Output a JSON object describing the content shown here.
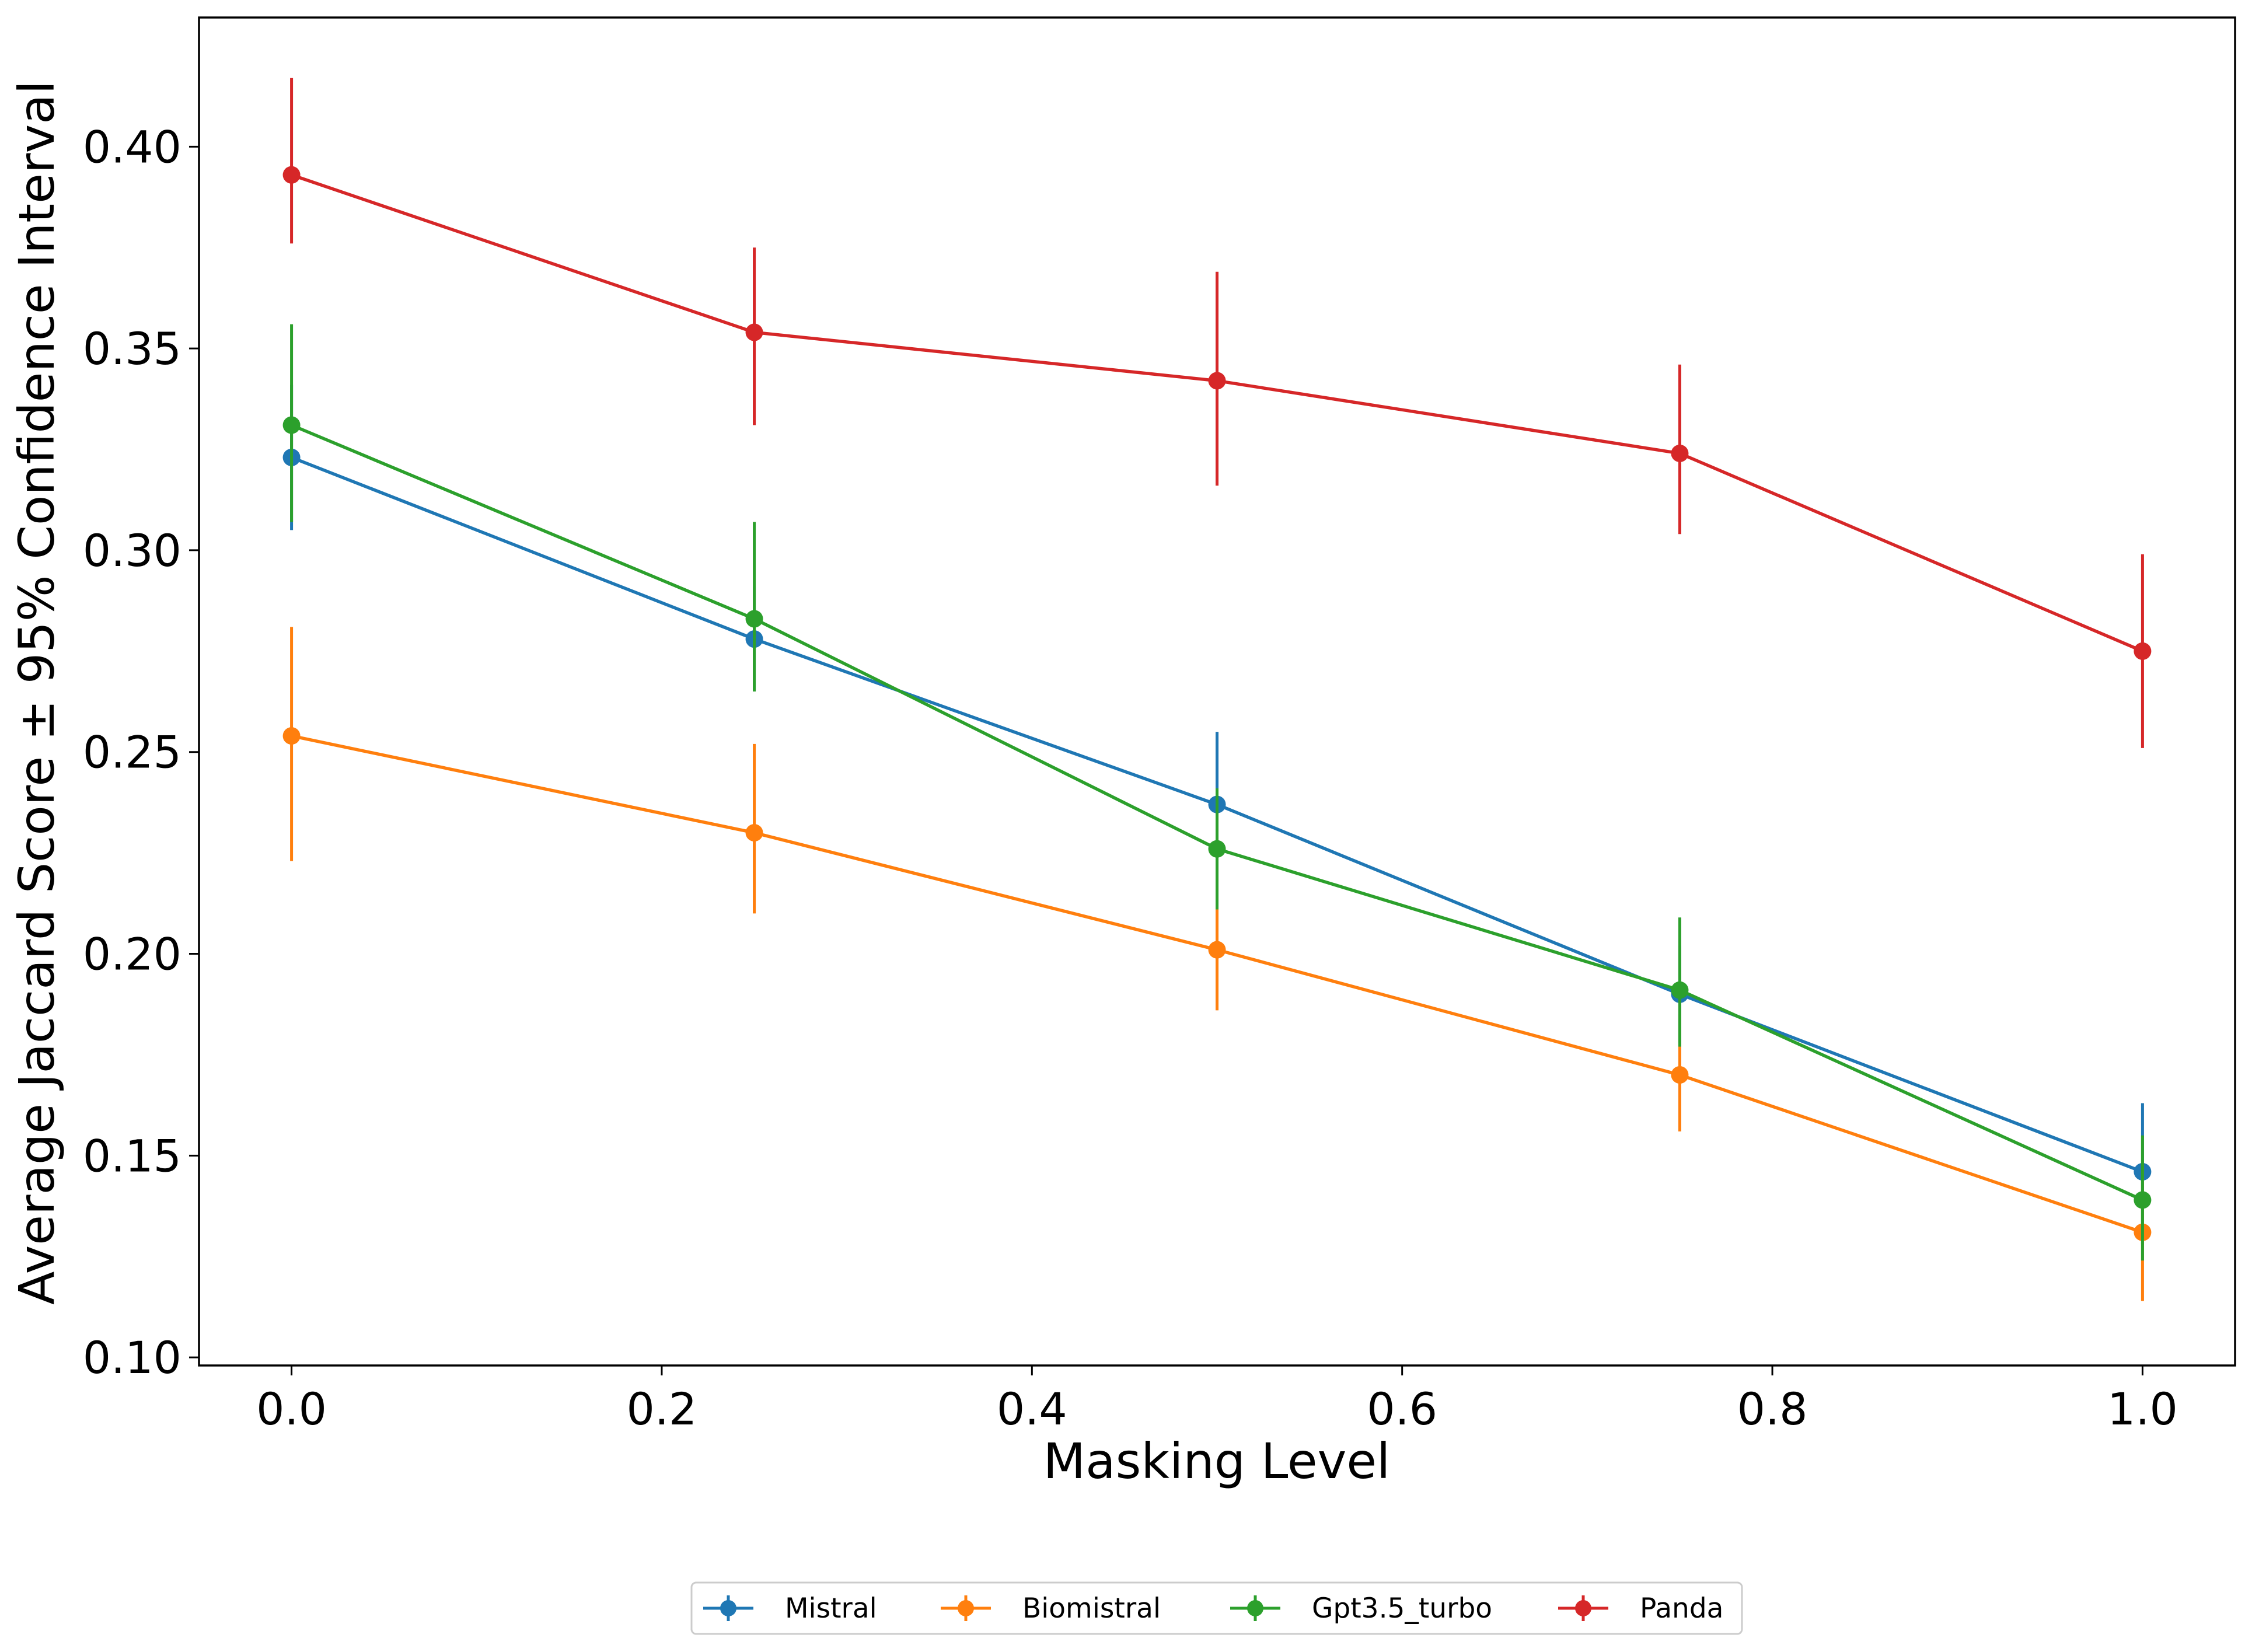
{
  "chart_data": {
    "type": "line",
    "xlabel": "Masking Level",
    "ylabel": "Average Jaccard Score ± 95% Confidence Interval",
    "xlim": [
      -0.05,
      1.05
    ],
    "ylim": [
      0.098,
      0.432
    ],
    "xticks": [
      0.0,
      0.2,
      0.4,
      0.6,
      0.8,
      1.0
    ],
    "xtick_labels": [
      "0.0",
      "0.2",
      "0.4",
      "0.6",
      "0.8",
      "1.0"
    ],
    "yticks": [
      0.1,
      0.15,
      0.2,
      0.25,
      0.3,
      0.35,
      0.4
    ],
    "ytick_labels": [
      "0.10",
      "0.15",
      "0.20",
      "0.25",
      "0.30",
      "0.35",
      "0.40"
    ],
    "grid": false,
    "legend_position": "bottom-center",
    "x": [
      0.0,
      0.25,
      0.5,
      0.75,
      1.0
    ],
    "series": [
      {
        "name": "Mistral",
        "color": "#1f77b4",
        "values": [
          0.323,
          0.278,
          0.237,
          0.19,
          0.146
        ],
        "ci_low": [
          0.305,
          0.265,
          0.219,
          0.178,
          0.128
        ],
        "ci_high": [
          0.341,
          0.291,
          0.255,
          0.202,
          0.163
        ]
      },
      {
        "name": "Biomistral",
        "color": "#ff7f0e",
        "values": [
          0.254,
          0.23,
          0.201,
          0.17,
          0.131
        ],
        "ci_low": [
          0.223,
          0.21,
          0.186,
          0.156,
          0.114
        ],
        "ci_high": [
          0.281,
          0.252,
          0.217,
          0.185,
          0.148
        ]
      },
      {
        "name": "Gpt3.5_turbo",
        "color": "#2ca02c",
        "values": [
          0.331,
          0.283,
          0.226,
          0.191,
          0.139
        ],
        "ci_low": [
          0.307,
          0.265,
          0.211,
          0.177,
          0.124
        ],
        "ci_high": [
          0.356,
          0.307,
          0.241,
          0.209,
          0.155
        ]
      },
      {
        "name": "Panda",
        "color": "#d62728",
        "values": [
          0.393,
          0.354,
          0.342,
          0.324,
          0.275
        ],
        "ci_low": [
          0.376,
          0.331,
          0.316,
          0.304,
          0.251
        ],
        "ci_high": [
          0.417,
          0.375,
          0.369,
          0.346,
          0.299
        ]
      }
    ]
  }
}
